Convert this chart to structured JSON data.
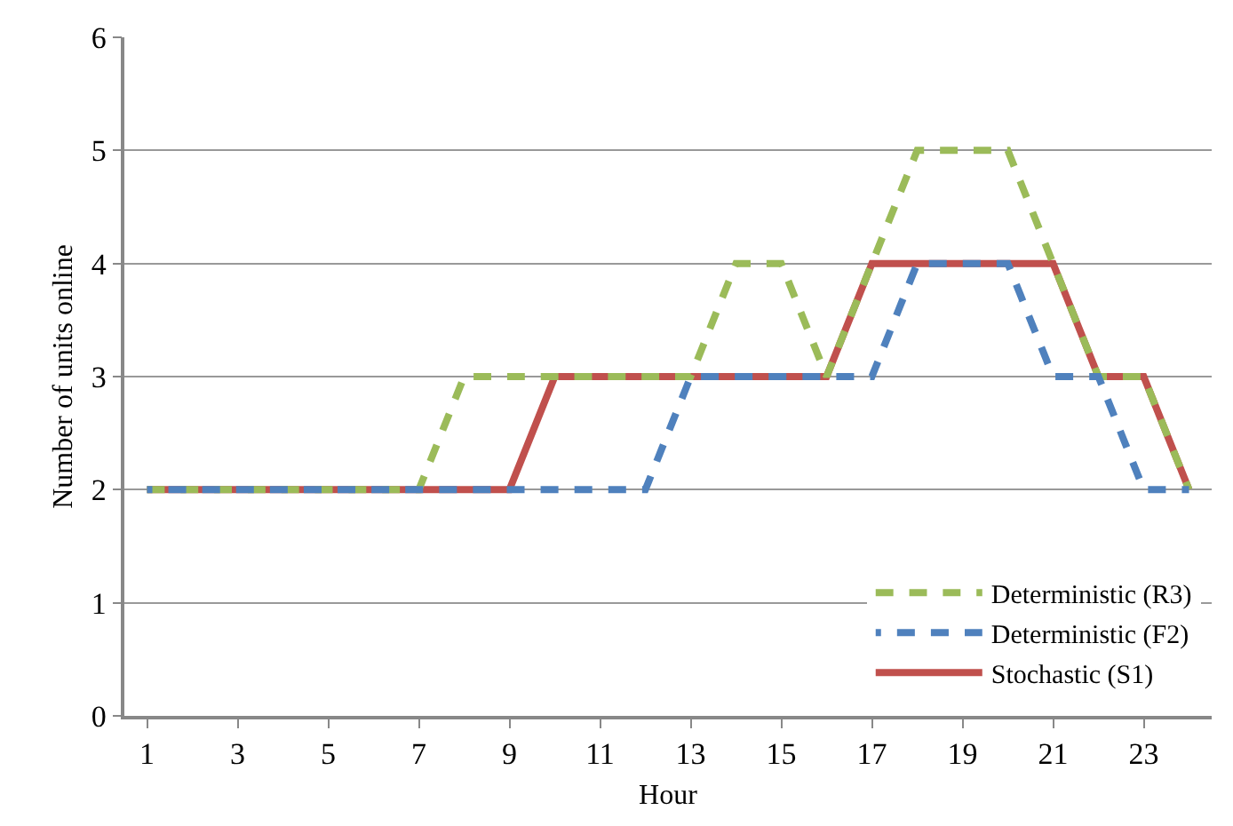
{
  "chart_data": {
    "type": "line",
    "xlabel": "Hour",
    "ylabel": "Number of units online",
    "x": [
      1,
      2,
      3,
      4,
      5,
      6,
      7,
      8,
      9,
      10,
      11,
      12,
      13,
      14,
      15,
      16,
      17,
      18,
      19,
      20,
      21,
      22,
      23,
      24
    ],
    "xlim": [
      0.5,
      24.5
    ],
    "xticks": [
      1,
      3,
      5,
      7,
      9,
      11,
      13,
      15,
      17,
      19,
      21,
      23
    ],
    "ylim": [
      0,
      6
    ],
    "yticks": [
      0,
      1,
      2,
      3,
      4,
      5,
      6
    ],
    "grid": "y",
    "legend": "bottom right",
    "marker": "none",
    "series": [
      {
        "name": "Deterministic (R3)",
        "color": "#9bbb59",
        "line_style": "dashed",
        "values": [
          2,
          2,
          2,
          2,
          2,
          2,
          2,
          3,
          3,
          3,
          3,
          3,
          3,
          4,
          4,
          3,
          4,
          5,
          5,
          5,
          4,
          3,
          3,
          2
        ]
      },
      {
        "name": "Deterministic (F2)",
        "color": "#4f81bd",
        "line_style": "dashed",
        "values": [
          2,
          2,
          2,
          2,
          2,
          2,
          2,
          2,
          2,
          2,
          2,
          2,
          3,
          3,
          3,
          3,
          3,
          4,
          4,
          4,
          3,
          3,
          2,
          2
        ]
      },
      {
        "name": "Stochastic (S1)",
        "color": "#c0504d",
        "line_style": "solid",
        "values": [
          2,
          2,
          2,
          2,
          2,
          2,
          2,
          2,
          2,
          3,
          3,
          3,
          3,
          3,
          3,
          3,
          4,
          4,
          4,
          4,
          4,
          3,
          3,
          2
        ]
      }
    ]
  }
}
